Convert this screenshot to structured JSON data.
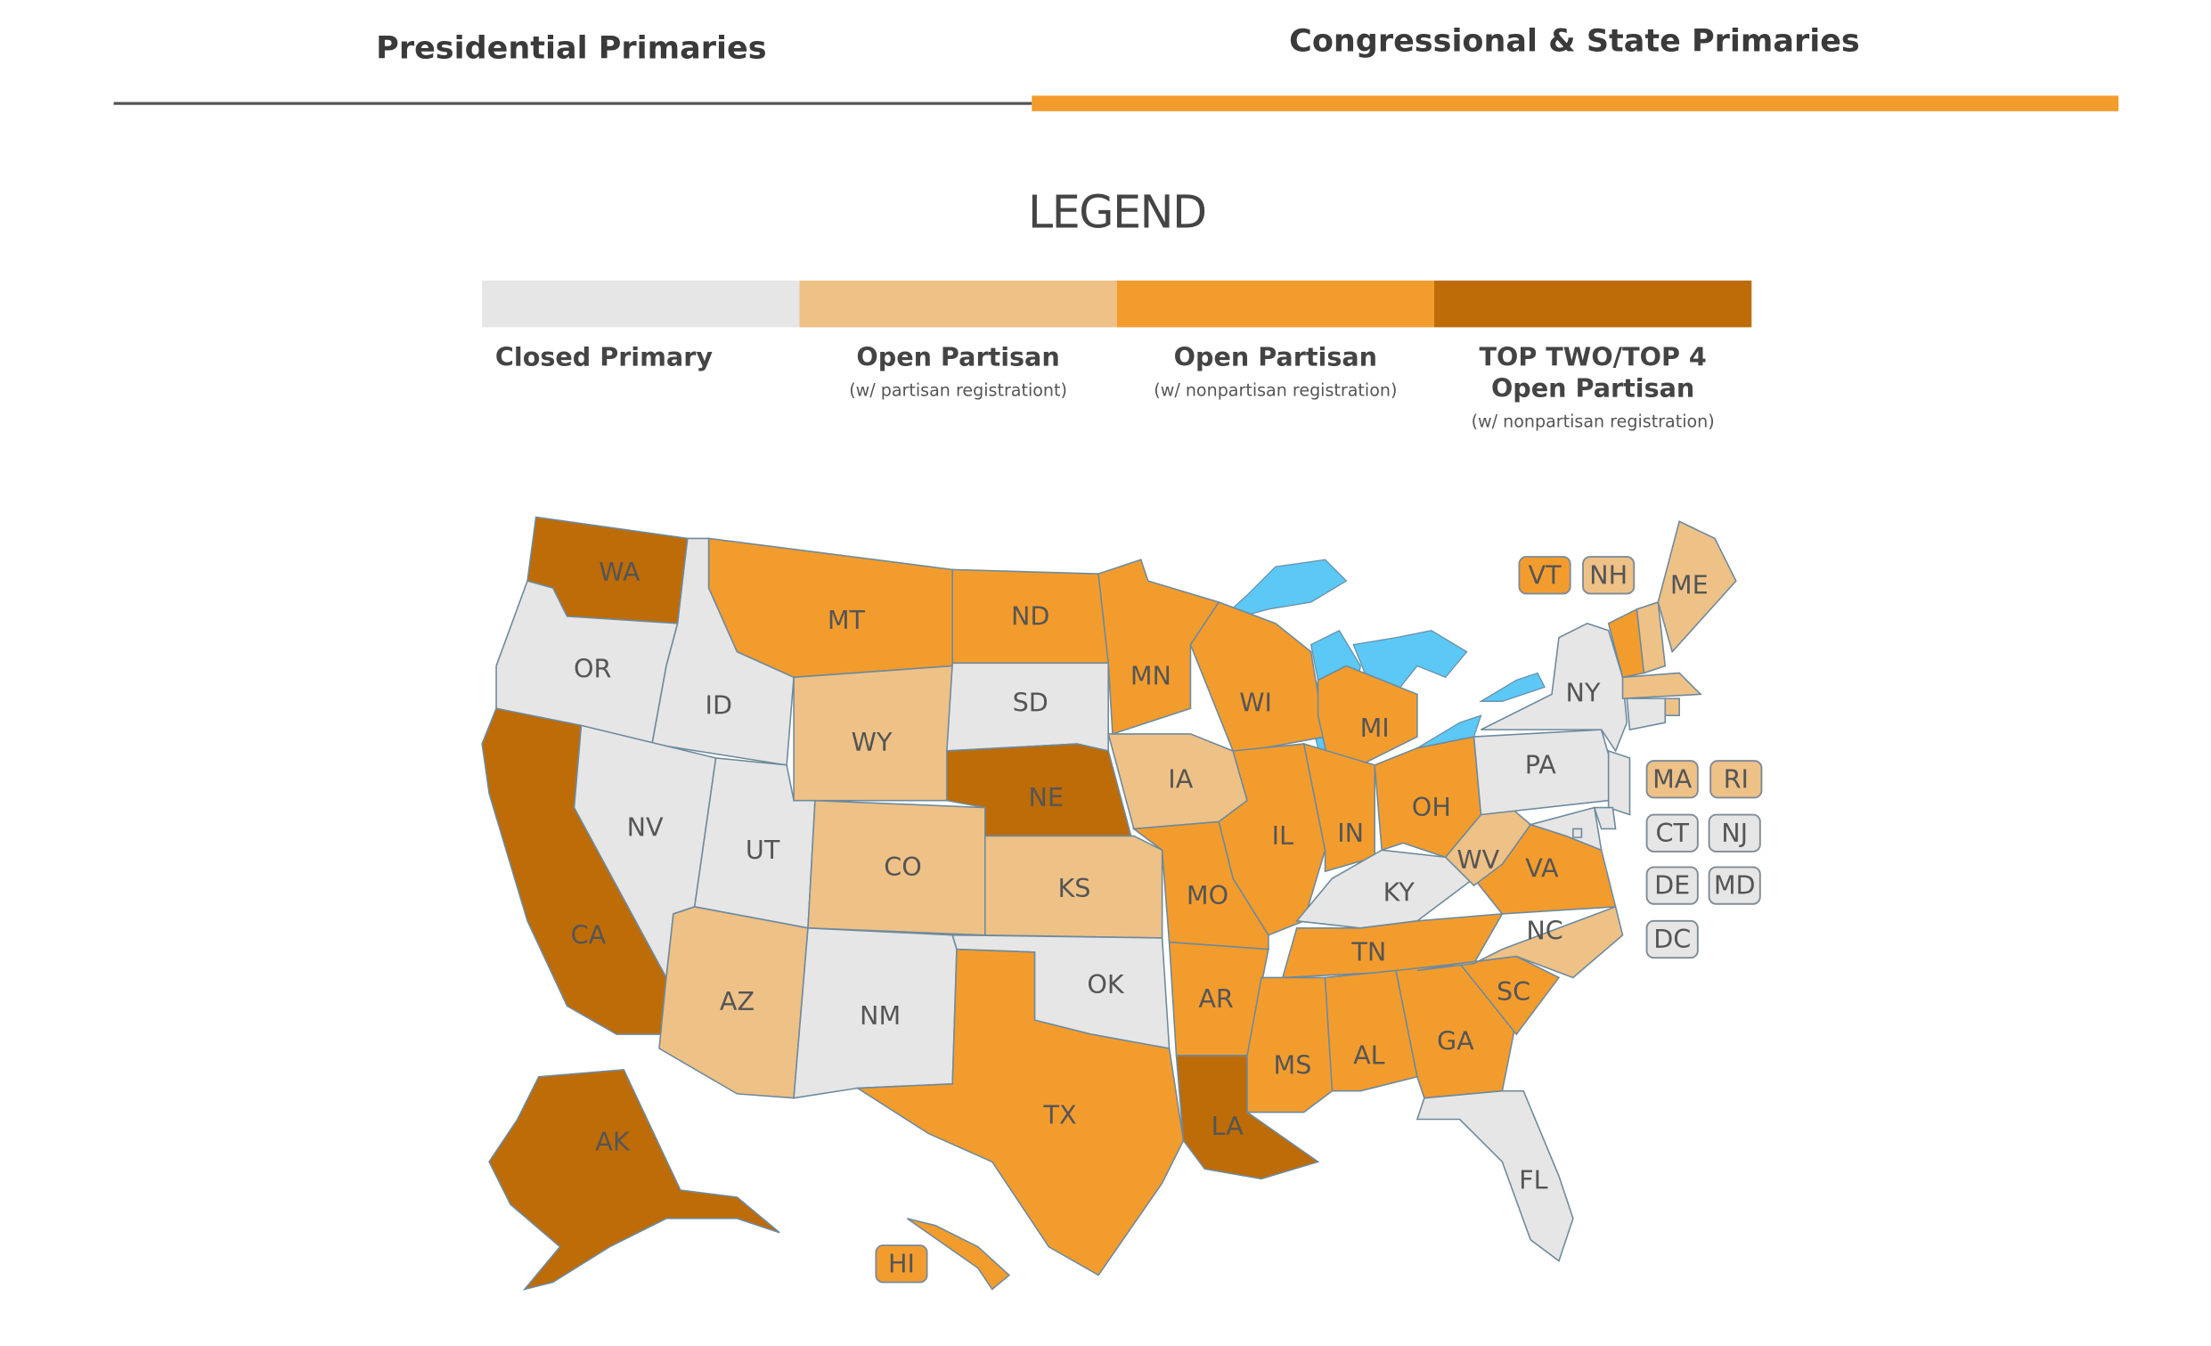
{
  "tabs": [
    {
      "label": "Presidential Primaries",
      "active": false
    },
    {
      "label": "Congressional & State Primaries",
      "active": true
    }
  ],
  "legend": {
    "title": "LEGEND",
    "items": [
      {
        "label_lines": [
          "Closed Primary"
        ],
        "color": "#e6e6e6"
      },
      {
        "label_lines": [
          "Open Partisan"
        ],
        "sublabel": "(w/ partisan registrationt)",
        "color": "#eec187"
      },
      {
        "label_lines": [
          "Open Partisan"
        ],
        "sublabel": "(w/ nonpartisan registration)",
        "color": "#f39c2e"
      },
      {
        "label_lines": [
          "TOP TWO/TOP 4",
          "Open Partisan"
        ],
        "sublabel": "(w/ nonpartisan registration)",
        "color": "#bd6c08"
      }
    ]
  },
  "states": [
    {
      "abbr": "WA",
      "category": 3
    },
    {
      "abbr": "OR",
      "category": 0
    },
    {
      "abbr": "CA",
      "category": 3
    },
    {
      "abbr": "ID",
      "category": 0
    },
    {
      "abbr": "NV",
      "category": 0
    },
    {
      "abbr": "UT",
      "category": 0
    },
    {
      "abbr": "AZ",
      "category": 1
    },
    {
      "abbr": "MT",
      "category": 2
    },
    {
      "abbr": "WY",
      "category": 1
    },
    {
      "abbr": "CO",
      "category": 1
    },
    {
      "abbr": "NM",
      "category": 0
    },
    {
      "abbr": "ND",
      "category": 2
    },
    {
      "abbr": "SD",
      "category": 0
    },
    {
      "abbr": "NE",
      "category": 3
    },
    {
      "abbr": "KS",
      "category": 1
    },
    {
      "abbr": "OK",
      "category": 0
    },
    {
      "abbr": "TX",
      "category": 2
    },
    {
      "abbr": "MN",
      "category": 2
    },
    {
      "abbr": "IA",
      "category": 1
    },
    {
      "abbr": "MO",
      "category": 2
    },
    {
      "abbr": "AR",
      "category": 2
    },
    {
      "abbr": "LA",
      "category": 3
    },
    {
      "abbr": "WI",
      "category": 2
    },
    {
      "abbr": "IL",
      "category": 2
    },
    {
      "abbr": "MI",
      "category": 2
    },
    {
      "abbr": "IN",
      "category": 2
    },
    {
      "abbr": "OH",
      "category": 2
    },
    {
      "abbr": "KY",
      "category": 0
    },
    {
      "abbr": "TN",
      "category": 2
    },
    {
      "abbr": "MS",
      "category": 2
    },
    {
      "abbr": "AL",
      "category": 2
    },
    {
      "abbr": "GA",
      "category": 2
    },
    {
      "abbr": "FL",
      "category": 0
    },
    {
      "abbr": "SC",
      "category": 2
    },
    {
      "abbr": "NC",
      "category": 1
    },
    {
      "abbr": "VA",
      "category": 2
    },
    {
      "abbr": "WV",
      "category": 1
    },
    {
      "abbr": "PA",
      "category": 0
    },
    {
      "abbr": "NY",
      "category": 0
    },
    {
      "abbr": "VT",
      "category": 2
    },
    {
      "abbr": "NH",
      "category": 1
    },
    {
      "abbr": "ME",
      "category": 1
    },
    {
      "abbr": "MA",
      "category": 1
    },
    {
      "abbr": "RI",
      "category": 1
    },
    {
      "abbr": "CT",
      "category": 0
    },
    {
      "abbr": "NJ",
      "category": 0
    },
    {
      "abbr": "DE",
      "category": 0
    },
    {
      "abbr": "MD",
      "category": 0
    },
    {
      "abbr": "DC",
      "category": 0
    },
    {
      "abbr": "AK",
      "category": 3
    },
    {
      "abbr": "HI",
      "category": 2
    }
  ]
}
